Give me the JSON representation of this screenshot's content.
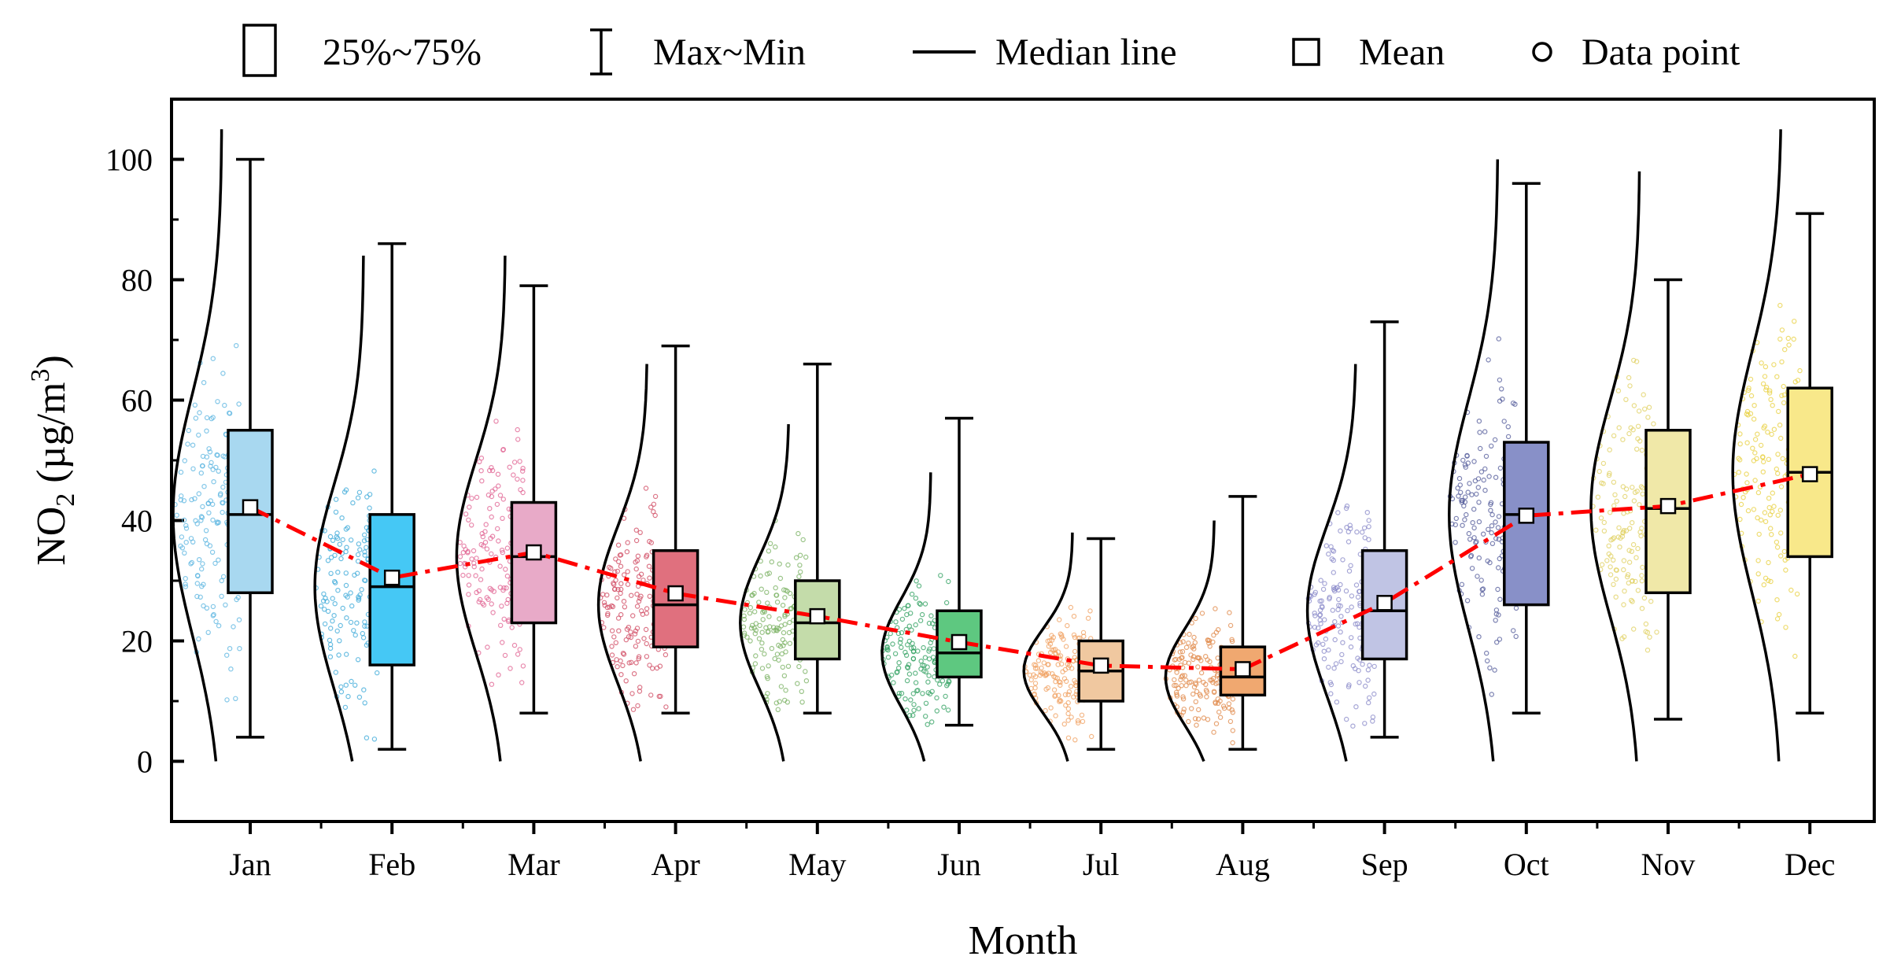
{
  "chart_data": {
    "type": "box",
    "title": "",
    "xlabel": "Month",
    "ylabel_main": "NO",
    "ylabel_sub": "2",
    "ylabel_unit": " (µg/m",
    "ylabel_sup": "3",
    "ylabel_close": ")",
    "ylim": [
      -10,
      110
    ],
    "yticks": [
      0,
      20,
      40,
      60,
      80,
      100
    ],
    "categories": [
      "Jan",
      "Feb",
      "Mar",
      "Apr",
      "May",
      "Jun",
      "Jul",
      "Aug",
      "Sep",
      "Oct",
      "Nov",
      "Dec"
    ],
    "legend": {
      "position": "top",
      "box_label": "25%~75%",
      "whisker_label": "Max~Min",
      "median_label": "Median line",
      "mean_label": "Mean",
      "point_label": "Data point"
    },
    "colors": [
      "#a8d8f0",
      "#45c8f5",
      "#e8aac8",
      "#e0707e",
      "#c4dcaa",
      "#5ec880",
      "#f0c8a0",
      "#f0a870",
      "#c0c4e4",
      "#8890c8",
      "#f0e8a8",
      "#f8e88a"
    ],
    "point_colors": [
      "#5ab4e0",
      "#3aa8d8",
      "#e06090",
      "#d04860",
      "#78b060",
      "#30a060",
      "#f0a060",
      "#e08848",
      "#8888c8",
      "#505898",
      "#e0d060",
      "#e8d040"
    ],
    "mean_line_color": "#ff0000",
    "series": [
      {
        "month": "Jan",
        "min": 4,
        "q1": 28,
        "median": 41,
        "q3": 55,
        "max": 100,
        "mean": 42.2
      },
      {
        "month": "Feb",
        "min": 2,
        "q1": 16,
        "median": 29,
        "q3": 41,
        "max": 86,
        "mean": 30.5
      },
      {
        "month": "Mar",
        "min": 8,
        "q1": 23,
        "median": 34,
        "q3": 43,
        "max": 79,
        "mean": 34.7
      },
      {
        "month": "Apr",
        "min": 8,
        "q1": 19,
        "median": 26,
        "q3": 35,
        "max": 69,
        "mean": 27.9
      },
      {
        "month": "May",
        "min": 8,
        "q1": 17,
        "median": 23,
        "q3": 30,
        "max": 66,
        "mean": 24.1
      },
      {
        "month": "Jun",
        "min": 6,
        "q1": 14,
        "median": 18,
        "q3": 25,
        "max": 57,
        "mean": 19.8
      },
      {
        "month": "Jul",
        "min": 2,
        "q1": 10,
        "median": 15,
        "q3": 20,
        "max": 37,
        "mean": 15.9
      },
      {
        "month": "Aug",
        "min": 2,
        "q1": 11,
        "median": 14,
        "q3": 19,
        "max": 44,
        "mean": 15.3
      },
      {
        "month": "Sep",
        "min": 4,
        "q1": 17,
        "median": 25,
        "q3": 35,
        "max": 73,
        "mean": 26.3
      },
      {
        "month": "Oct",
        "min": 8,
        "q1": 26,
        "median": 41,
        "q3": 53,
        "max": 96,
        "mean": 40.8
      },
      {
        "month": "Nov",
        "min": 7,
        "q1": 28,
        "median": 42,
        "q3": 55,
        "max": 80,
        "mean": 42.4
      },
      {
        "month": "Dec",
        "min": 8,
        "q1": 34,
        "median": 48,
        "q3": 62,
        "max": 91,
        "mean": 47.7
      }
    ],
    "distribution_curves": [
      {
        "month": "Jan",
        "peak_y": 41,
        "spread": 20,
        "top": 105
      },
      {
        "month": "Feb",
        "peak_y": 29,
        "spread": 17,
        "top": 84
      },
      {
        "month": "Mar",
        "peak_y": 34,
        "spread": 16,
        "top": 84
      },
      {
        "month": "Apr",
        "peak_y": 26,
        "spread": 13,
        "top": 66
      },
      {
        "month": "May",
        "peak_y": 23,
        "spread": 11,
        "top": 56
      },
      {
        "month": "Jun",
        "peak_y": 18,
        "spread": 9,
        "top": 48
      },
      {
        "month": "Jul",
        "peak_y": 15,
        "spread": 7,
        "top": 38
      },
      {
        "month": "Aug",
        "peak_y": 14,
        "spread": 8,
        "top": 40
      },
      {
        "month": "Sep",
        "peak_y": 25,
        "spread": 14,
        "top": 66
      },
      {
        "month": "Oct",
        "peak_y": 41,
        "spread": 19,
        "top": 100
      },
      {
        "month": "Nov",
        "peak_y": 42,
        "spread": 18,
        "top": 98
      },
      {
        "month": "Dec",
        "peak_y": 48,
        "spread": 20,
        "top": 105
      }
    ]
  }
}
